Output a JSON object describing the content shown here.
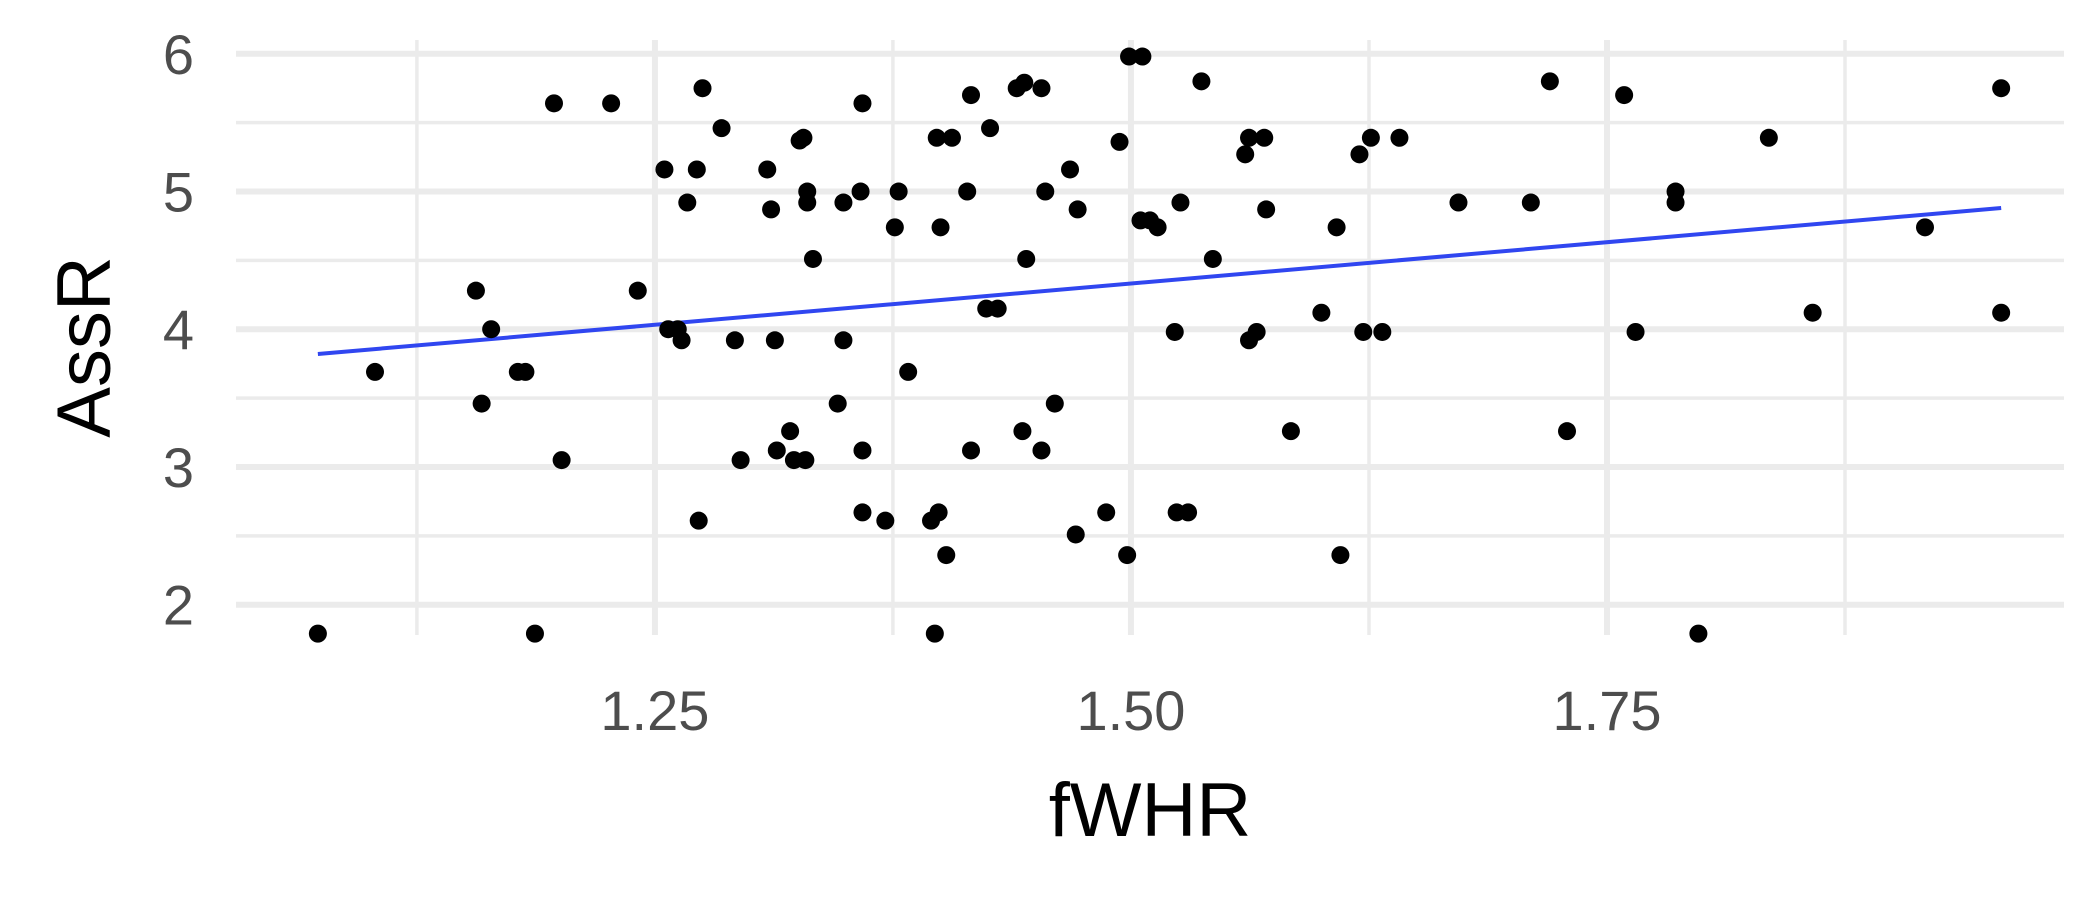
{
  "chart_data": {
    "type": "scatter",
    "title": "",
    "xlabel": "fWHR",
    "ylabel": "AssR",
    "xlim": [
      1.03,
      1.99
    ],
    "ylim": [
      1.78,
      6.1
    ],
    "x_ticks": [
      1.25,
      1.5,
      1.75
    ],
    "x_tick_labels": [
      "1.25",
      "1.50",
      "1.75"
    ],
    "x_minor_ticks": [
      1.125,
      1.375,
      1.625,
      1.875
    ],
    "y_ticks": [
      2,
      3,
      4,
      5,
      6
    ],
    "y_tick_labels": [
      "2",
      "3",
      "4",
      "5",
      "6"
    ],
    "y_minor_ticks": [
      2.5,
      3.5,
      4.5,
      5.5
    ],
    "grid": true,
    "legend": "none",
    "colors": {
      "points": "#000000",
      "fit_line": "#3046f0",
      "grid": "#ebebeb"
    },
    "series": [
      {
        "type": "scatter",
        "points": [
          [
            1.073,
            1.79
          ],
          [
            1.103,
            3.69
          ],
          [
            1.156,
            4.28
          ],
          [
            1.159,
            3.46
          ],
          [
            1.164,
            4.0
          ],
          [
            1.178,
            3.69
          ],
          [
            1.182,
            3.69
          ],
          [
            1.187,
            1.79
          ],
          [
            1.197,
            5.64
          ],
          [
            1.201,
            3.05
          ],
          [
            1.227,
            5.64
          ],
          [
            1.241,
            4.28
          ],
          [
            1.255,
            5.16
          ],
          [
            1.257,
            4.0
          ],
          [
            1.262,
            4.0
          ],
          [
            1.264,
            3.92
          ],
          [
            1.267,
            4.92
          ],
          [
            1.272,
            5.16
          ],
          [
            1.273,
            2.61
          ],
          [
            1.275,
            5.75
          ],
          [
            1.285,
            5.46
          ],
          [
            1.292,
            3.92
          ],
          [
            1.295,
            3.05
          ],
          [
            1.309,
            5.16
          ],
          [
            1.311,
            4.87
          ],
          [
            1.313,
            3.92
          ],
          [
            1.314,
            3.12
          ],
          [
            1.321,
            3.26
          ],
          [
            1.323,
            3.05
          ],
          [
            1.326,
            5.37
          ],
          [
            1.328,
            5.39
          ],
          [
            1.329,
            3.05
          ],
          [
            1.33,
            5.0
          ],
          [
            1.33,
            4.92
          ],
          [
            1.333,
            4.51
          ],
          [
            1.346,
            3.46
          ],
          [
            1.349,
            3.92
          ],
          [
            1.349,
            4.92
          ],
          [
            1.358,
            5.0
          ],
          [
            1.359,
            3.12
          ],
          [
            1.359,
            2.67
          ],
          [
            1.359,
            5.64
          ],
          [
            1.371,
            2.61
          ],
          [
            1.376,
            4.74
          ],
          [
            1.378,
            5.0
          ],
          [
            1.383,
            3.69
          ],
          [
            1.395,
            2.61
          ],
          [
            1.397,
            1.79
          ],
          [
            1.398,
            5.39
          ],
          [
            1.399,
            2.67
          ],
          [
            1.4,
            4.74
          ],
          [
            1.403,
            2.36
          ],
          [
            1.406,
            5.39
          ],
          [
            1.414,
            5.0
          ],
          [
            1.416,
            3.12
          ],
          [
            1.416,
            5.7
          ],
          [
            1.424,
            4.15
          ],
          [
            1.426,
            5.46
          ],
          [
            1.43,
            4.15
          ],
          [
            1.44,
            5.75
          ],
          [
            1.443,
            3.26
          ],
          [
            1.444,
            5.79
          ],
          [
            1.445,
            4.51
          ],
          [
            1.453,
            3.12
          ],
          [
            1.453,
            5.75
          ],
          [
            1.455,
            5.0
          ],
          [
            1.46,
            3.46
          ],
          [
            1.468,
            5.16
          ],
          [
            1.471,
            2.51
          ],
          [
            1.472,
            4.87
          ],
          [
            1.487,
            2.67
          ],
          [
            1.494,
            5.36
          ],
          [
            1.498,
            2.36
          ],
          [
            1.499,
            5.98
          ],
          [
            1.505,
            4.79
          ],
          [
            1.506,
            5.98
          ],
          [
            1.51,
            4.79
          ],
          [
            1.514,
            4.74
          ],
          [
            1.523,
            3.98
          ],
          [
            1.524,
            2.67
          ],
          [
            1.526,
            4.92
          ],
          [
            1.53,
            2.67
          ],
          [
            1.537,
            5.8
          ],
          [
            1.543,
            4.51
          ],
          [
            1.56,
            5.27
          ],
          [
            1.562,
            5.39
          ],
          [
            1.562,
            3.92
          ],
          [
            1.566,
            3.98
          ],
          [
            1.57,
            5.39
          ],
          [
            1.571,
            4.87
          ],
          [
            1.584,
            3.26
          ],
          [
            1.6,
            4.12
          ],
          [
            1.608,
            4.74
          ],
          [
            1.61,
            2.36
          ],
          [
            1.62,
            5.27
          ],
          [
            1.622,
            3.98
          ],
          [
            1.626,
            5.39
          ],
          [
            1.632,
            3.98
          ],
          [
            1.641,
            5.39
          ],
          [
            1.672,
            4.92
          ],
          [
            1.71,
            4.92
          ],
          [
            1.72,
            5.8
          ],
          [
            1.729,
            3.26
          ],
          [
            1.759,
            5.7
          ],
          [
            1.765,
            3.98
          ],
          [
            1.786,
            5.0
          ],
          [
            1.786,
            4.92
          ],
          [
            1.798,
            1.79
          ],
          [
            1.835,
            5.39
          ],
          [
            1.858,
            4.12
          ],
          [
            1.917,
            4.74
          ],
          [
            1.957,
            5.75
          ],
          [
            1.957,
            4.12
          ]
        ]
      },
      {
        "type": "line",
        "name": "",
        "points": [
          [
            1.073,
            3.82
          ],
          [
            1.957,
            4.88
          ]
        ]
      }
    ]
  }
}
